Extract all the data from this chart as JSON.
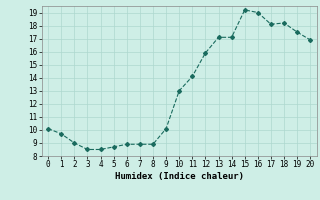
{
  "x": [
    0,
    1,
    2,
    3,
    4,
    5,
    6,
    7,
    8,
    9,
    10,
    11,
    12,
    13,
    14,
    15,
    16,
    17,
    18,
    19,
    20
  ],
  "y": [
    10.1,
    9.7,
    9.0,
    8.5,
    8.5,
    8.7,
    8.9,
    8.9,
    8.9,
    10.1,
    13.0,
    14.1,
    15.9,
    17.1,
    17.1,
    19.2,
    19.0,
    18.1,
    18.2,
    17.5,
    16.9
  ],
  "line_color": "#1a6b5e",
  "marker": "D",
  "marker_size": 2,
  "bg_color": "#ceeee6",
  "grid_color": "#aed8ce",
  "xlabel": "Humidex (Indice chaleur)",
  "ylim": [
    8,
    19.5
  ],
  "xlim": [
    -0.5,
    20.5
  ],
  "yticks": [
    8,
    9,
    10,
    11,
    12,
    13,
    14,
    15,
    16,
    17,
    18,
    19
  ],
  "xticks": [
    0,
    1,
    2,
    3,
    4,
    5,
    6,
    7,
    8,
    9,
    10,
    11,
    12,
    13,
    14,
    15,
    16,
    17,
    18,
    19,
    20
  ],
  "label_fontsize": 6.5,
  "tick_fontsize": 5.5
}
